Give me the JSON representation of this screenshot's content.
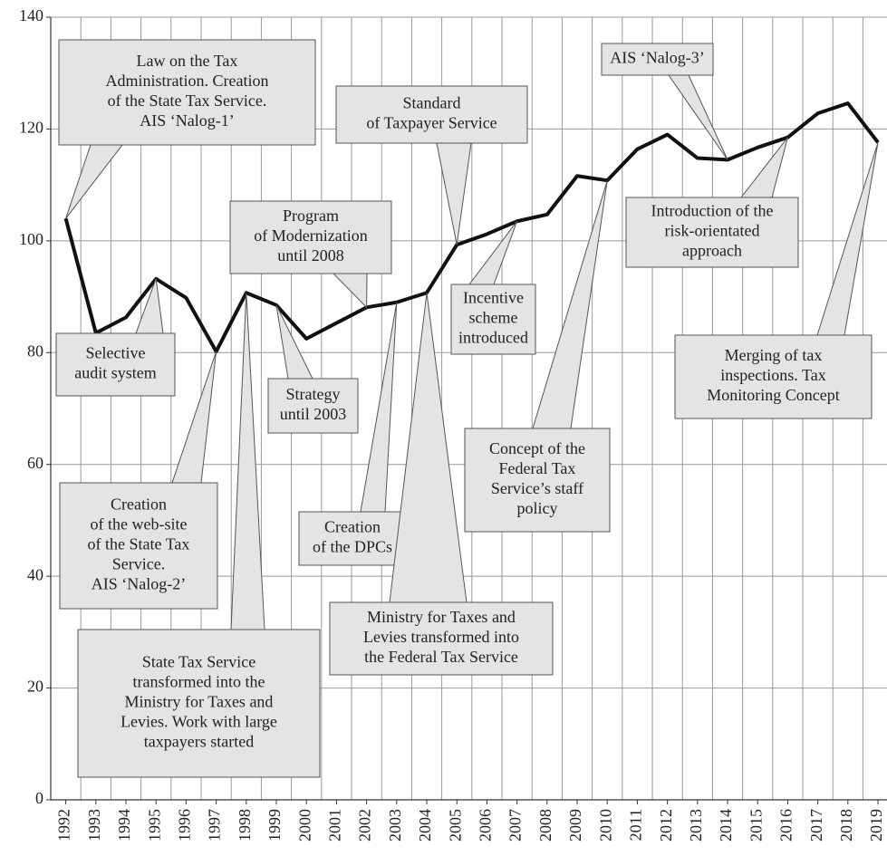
{
  "chart_data": {
    "type": "line",
    "x": [
      1992,
      1993,
      1994,
      1995,
      1996,
      1997,
      1998,
      1999,
      2000,
      2001,
      2002,
      2003,
      2004,
      2005,
      2006,
      2007,
      2008,
      2009,
      2010,
      2011,
      2012,
      2013,
      2014,
      2015,
      2016,
      2017,
      2018,
      2019
    ],
    "values": [
      104,
      83.5,
      86.3,
      93.2,
      89.8,
      80.2,
      90.7,
      88.5,
      82.5,
      85.3,
      88.1,
      89,
      90.7,
      99.3,
      101.2,
      103.5,
      104.7,
      111.6,
      110.8,
      116.4,
      119,
      114.8,
      114.5,
      116.7,
      118.5,
      122.8,
      124.6,
      117.6
    ],
    "color": "#111111",
    "xlim": [
      1991.5,
      2019.3
    ],
    "xticks": [
      1992,
      1993,
      1994,
      1995,
      1996,
      1997,
      1998,
      1999,
      2000,
      2001,
      2002,
      2003,
      2004,
      2005,
      2006,
      2007,
      2008,
      2009,
      2010,
      2011,
      2012,
      2013,
      2014,
      2015,
      2016,
      2017,
      2018,
      2019
    ],
    "ylim": [
      0,
      140
    ],
    "yticks": [
      0,
      20,
      40,
      60,
      80,
      100,
      120,
      140
    ],
    "grid": true,
    "annotations": [
      {
        "lines": [
          "Law on the Tax",
          "Administration. Creation",
          "of the State Tax Service.",
          "AIS ‘Nalog-1’"
        ],
        "x": 1992
      },
      {
        "lines": [
          "Selective",
          "audit system"
        ],
        "x": 1995
      },
      {
        "lines": [
          "Creation",
          "of the web-site",
          "of the State Tax",
          "Service.",
          "AIS ‘Nalog-2’"
        ],
        "x": 1997
      },
      {
        "lines": [
          "State Tax Service",
          "transformed into the",
          "Ministry for Taxes and",
          "Levies. Work with large",
          "taxpayers started"
        ],
        "x": 1998
      },
      {
        "lines": [
          "Strategy",
          "until 2003"
        ],
        "x": 1999
      },
      {
        "lines": [
          "Program",
          "of Modernization",
          "until 2008"
        ],
        "x": 2002
      },
      {
        "lines": [
          "Creation",
          "of the DPCs"
        ],
        "x": 2003
      },
      {
        "lines": [
          "Ministry for Taxes and",
          "Levies transformed into",
          "the Federal Tax Service"
        ],
        "x": 2004
      },
      {
        "lines": [
          "Standard",
          "of Taxpayer Service"
        ],
        "x": 2005
      },
      {
        "lines": [
          "Incentive",
          "scheme",
          "introduced"
        ],
        "x": 2007
      },
      {
        "lines": [
          "Concept of the",
          "Federal Tax",
          "Service’s staff",
          "policy"
        ],
        "x": 2010
      },
      {
        "lines": [
          "AIS ‘Nalog-3’"
        ],
        "x": 2014
      },
      {
        "lines": [
          "Introduction of the",
          "risk-orientated",
          "approach"
        ],
        "x": 2016
      },
      {
        "lines": [
          "Merging of tax",
          "inspections. Tax",
          "Monitoring Concept"
        ],
        "x": 2019
      }
    ]
  }
}
